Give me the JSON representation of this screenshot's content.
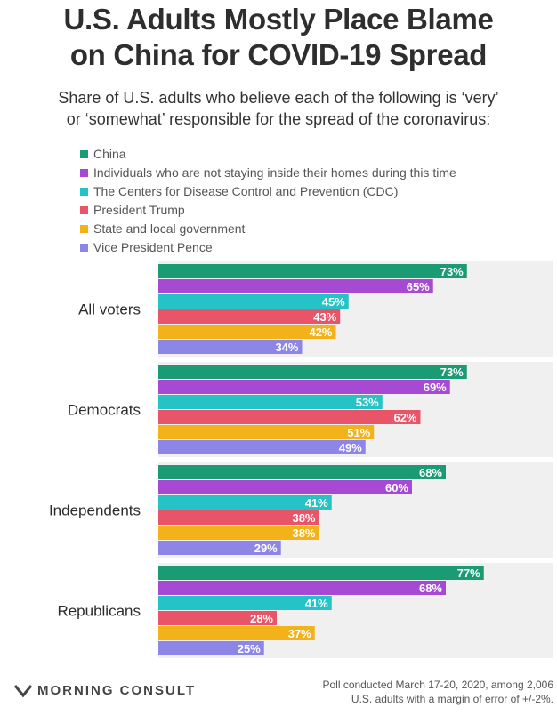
{
  "title_lines": [
    "U.S. Adults Mostly Place Blame",
    "on China for COVID-19 Spread"
  ],
  "subtitle_lines": [
    "Share of U.S. adults who believe each of the following is ‘very’",
    "or ‘somewhat’ responsible for the spread of the coronavirus:"
  ],
  "colors": {
    "china": "#1a9b74",
    "individuals": "#a74ad3",
    "cdc": "#25c3c6",
    "trump": "#e85468",
    "state": "#f4b21a",
    "pence": "#8e86e6"
  },
  "chart_data": {
    "type": "bar",
    "orientation": "horizontal",
    "categories": [
      "All voters",
      "Democrats",
      "Independents",
      "Republicans"
    ],
    "series": [
      {
        "name": "China",
        "color_key": "china",
        "values": [
          73,
          73,
          68,
          77
        ]
      },
      {
        "name": "Individuals who are not staying inside their homes during this time",
        "color_key": "individuals",
        "values": [
          65,
          69,
          60,
          68
        ]
      },
      {
        "name": "The Centers for Disease Control and Prevention (CDC)",
        "color_key": "cdc",
        "values": [
          45,
          53,
          41,
          41
        ]
      },
      {
        "name": "President Trump",
        "color_key": "trump",
        "values": [
          43,
          62,
          38,
          28
        ]
      },
      {
        "name": "State and local government",
        "color_key": "state",
        "values": [
          42,
          51,
          38,
          37
        ]
      },
      {
        "name": "Vice President Pence",
        "color_key": "pence",
        "values": [
          34,
          49,
          29,
          25
        ]
      }
    ],
    "value_suffix": "%",
    "legend_position": "top-left",
    "grid": false,
    "xlim": [
      0,
      100
    ]
  },
  "footer": {
    "brand": "MORNING CONSULT",
    "note_lines": [
      "Poll conducted March 17-20, 2020, among 2,006",
      "U.S. adults with a margin of error of +/-2%."
    ]
  }
}
